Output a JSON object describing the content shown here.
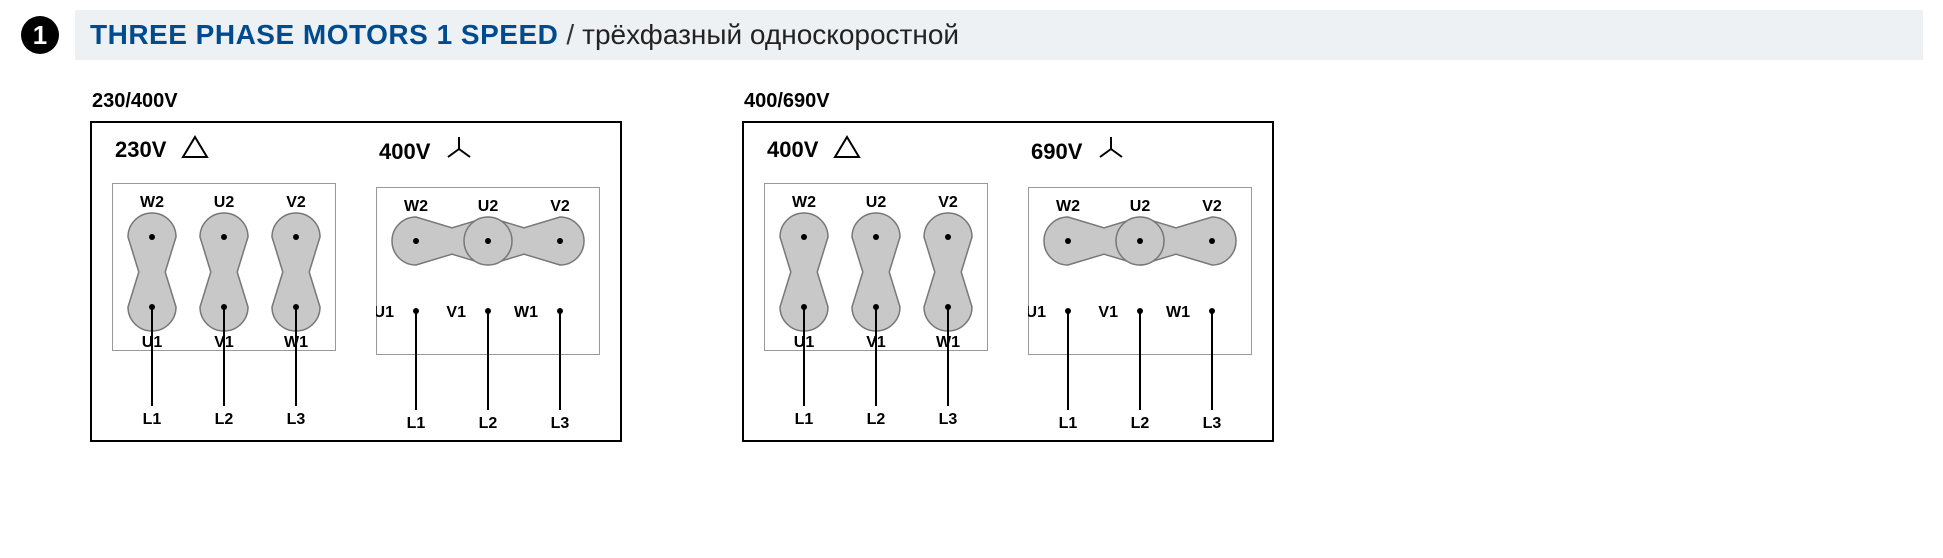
{
  "header": {
    "bullet_number": "1",
    "title_en": "THREE PHASE MOTORS 1 SPEED",
    "separator": "/",
    "title_ru": "трёхфазный односкоростной",
    "title_color": "#004b8d",
    "bar_bg": "#eef1f4"
  },
  "groups": [
    {
      "label": "230/400V",
      "panels": [
        {
          "voltage": "230V",
          "connection": "delta"
        },
        {
          "voltage": "400V",
          "connection": "star"
        }
      ]
    },
    {
      "label": "400/690V",
      "panels": [
        {
          "voltage": "400V",
          "connection": "delta"
        },
        {
          "voltage": "690V",
          "connection": "star"
        }
      ]
    }
  ],
  "terminals": {
    "top": [
      "W2",
      "U2",
      "V2"
    ],
    "bottom": [
      "U1",
      "V1",
      "W1"
    ],
    "lines": [
      "L1",
      "L2",
      "L3"
    ]
  },
  "style": {
    "blob_fill": "#c8c8c8",
    "blob_stroke": "#777777",
    "blob_stroke_width": 1.5,
    "terminal_r": 24,
    "terminal_spacing": 72,
    "lead_length": 55,
    "inner_border": "#999999",
    "outer_border": "#000000",
    "label_fontsize": 16,
    "header_fontsize": 22
  }
}
